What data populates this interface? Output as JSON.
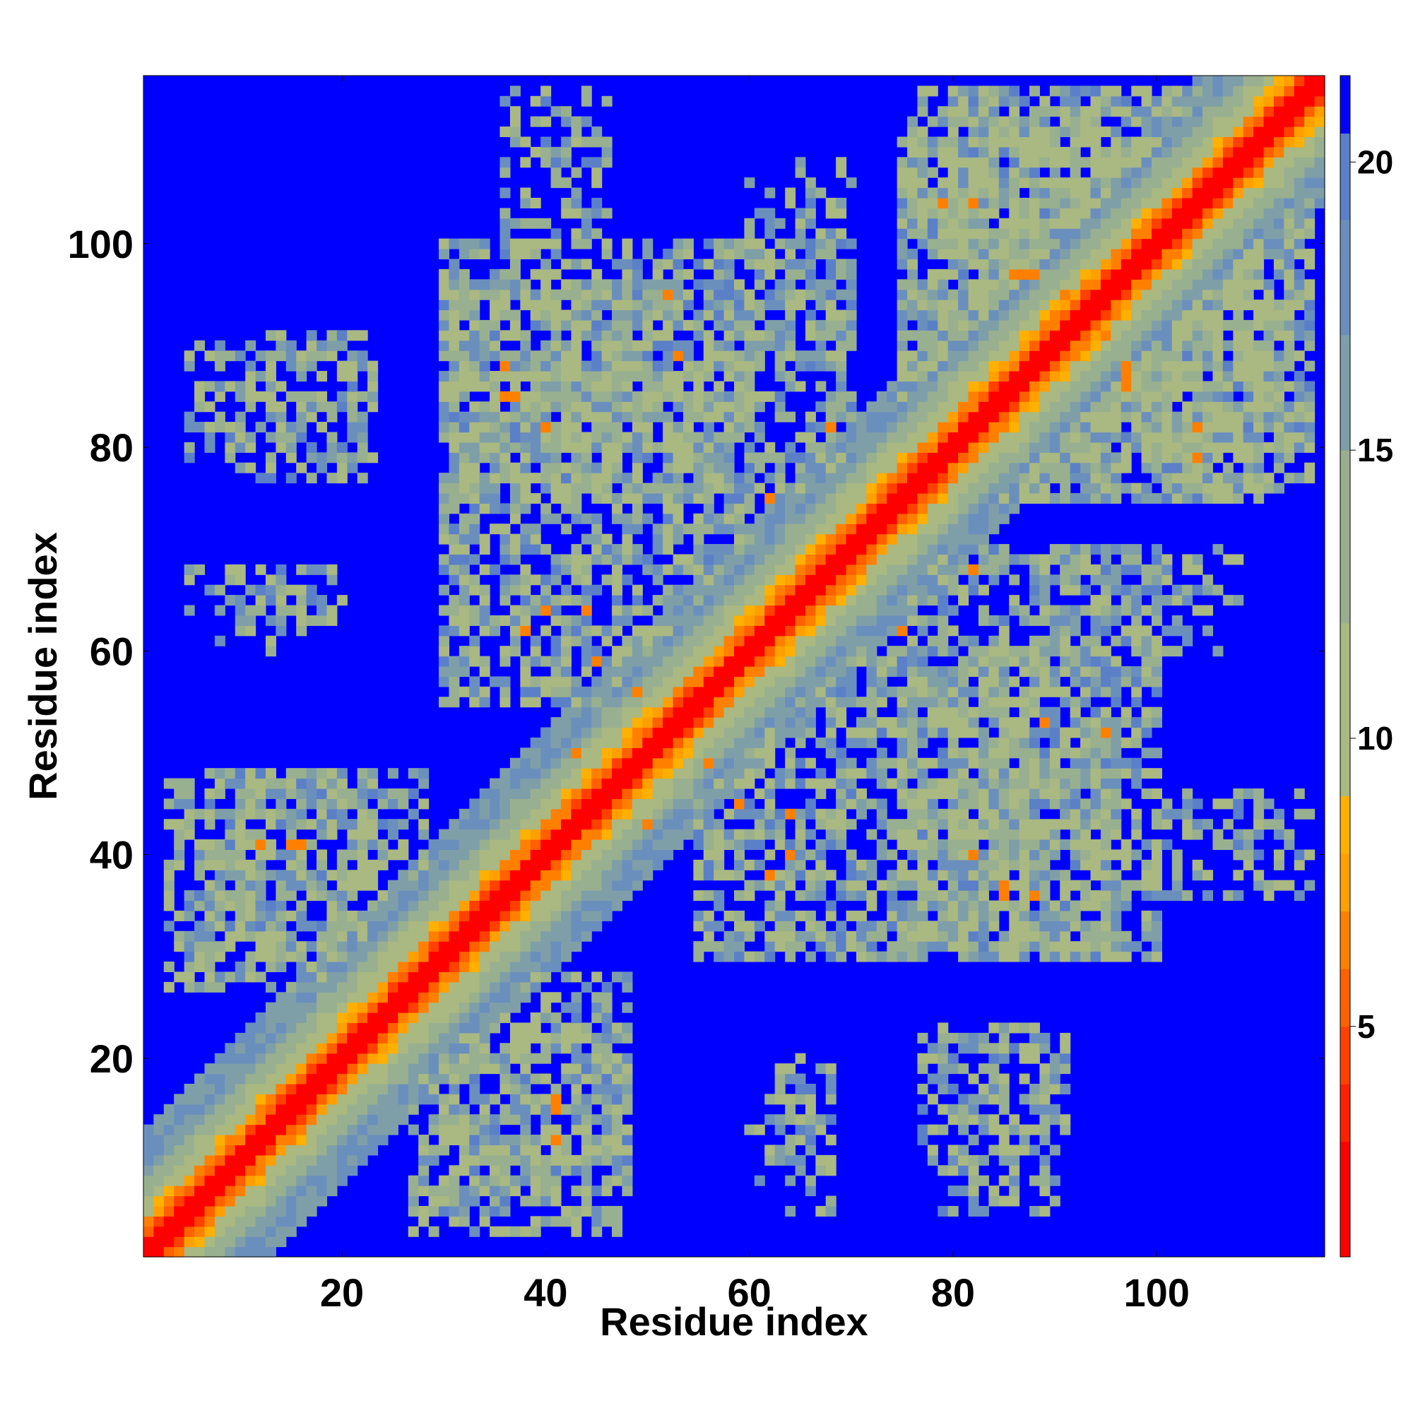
{
  "chart_data": {
    "type": "heatmap",
    "title": "",
    "xlabel": "Residue index",
    "ylabel": "Residue index",
    "n_residues": 116,
    "xlim": [
      1,
      116
    ],
    "ylim": [
      1,
      116
    ],
    "x_ticks": [
      20,
      40,
      60,
      80,
      100
    ],
    "y_ticks": [
      20,
      40,
      60,
      80,
      100
    ],
    "x_tick_labels": [
      "20",
      "40",
      "60",
      "80",
      "100"
    ],
    "y_tick_labels": [
      "20",
      "40",
      "60",
      "80",
      "100"
    ],
    "colorbar": {
      "ticks": [
        5,
        10,
        15,
        20
      ],
      "tick_labels": [
        "5",
        "10",
        "15",
        "20"
      ],
      "range": [
        1,
        21.5
      ],
      "cap": 21.5,
      "stops": [
        {
          "value": 1,
          "color": "#ff0000"
        },
        {
          "value": 3,
          "color": "#ff2000"
        },
        {
          "value": 4,
          "color": "#ff4000"
        },
        {
          "value": 5,
          "color": "#ff6000"
        },
        {
          "value": 6,
          "color": "#ff8000"
        },
        {
          "value": 7,
          "color": "#ffa000"
        },
        {
          "value": 8,
          "color": "#ffb000"
        },
        {
          "value": 9,
          "color": "#aab882"
        },
        {
          "value": 12,
          "color": "#98b08f"
        },
        {
          "value": 15,
          "color": "#7f9fa8"
        },
        {
          "value": 17,
          "color": "#6b8fbd"
        },
        {
          "value": 19,
          "color": "#5b80c8"
        },
        {
          "value": 20.5,
          "color": "#0000ff"
        }
      ]
    },
    "contact_clusters": [
      {
        "x_range": [
          30,
          70
        ],
        "y_range": [
          75,
          100
        ],
        "density": 0.65
      },
      {
        "x_range": [
          55,
          95
        ],
        "y_range": [
          30,
          60
        ],
        "density": 0.65
      },
      {
        "x_range": [
          75,
          115
        ],
        "y_range": [
          80,
          115
        ],
        "density": 0.6
      },
      {
        "x_range": [
          80,
          110
        ],
        "y_range": [
          75,
          100
        ],
        "density": 0.55
      },
      {
        "x_range": [
          3,
          22
        ],
        "y_range": [
          27,
          48
        ],
        "density": 0.55
      },
      {
        "x_range": [
          30,
          48
        ],
        "y_range": [
          5,
          28
        ],
        "density": 0.55
      },
      {
        "x_range": [
          6,
          22
        ],
        "y_range": [
          77,
          91
        ],
        "density": 0.35
      },
      {
        "x_range": [
          36,
          46
        ],
        "y_range": [
          100,
          114
        ],
        "density": 0.3
      },
      {
        "x_range": [
          63,
          68
        ],
        "y_range": [
          5,
          20
        ],
        "density": 0.35
      },
      {
        "x_range": [
          79,
          89
        ],
        "y_range": [
          5,
          23
        ],
        "density": 0.4
      },
      {
        "x_range": [
          95,
          115
        ],
        "y_range": [
          37,
          45
        ],
        "density": 0.25
      },
      {
        "x_range": [
          8,
          20
        ],
        "y_range": [
          60,
          68
        ],
        "density": 0.25
      },
      {
        "x_range": [
          94,
          106
        ],
        "y_range": [
          60,
          68
        ],
        "density": 0.25
      },
      {
        "x_range": [
          64,
          70
        ],
        "y_range": [
          100,
          108
        ],
        "density": 0.3
      }
    ],
    "orange_contacts": [
      [
        15,
        41
      ],
      [
        41,
        15
      ],
      [
        12,
        41
      ],
      [
        41,
        12
      ],
      [
        37,
        85
      ],
      [
        85,
        37
      ],
      [
        40,
        82
      ],
      [
        82,
        40
      ],
      [
        44,
        64
      ],
      [
        64,
        44
      ],
      [
        52,
        95
      ],
      [
        95,
        52
      ],
      [
        53,
        89
      ],
      [
        89,
        53
      ],
      [
        50,
        43
      ],
      [
        43,
        50
      ],
      [
        62,
        38
      ],
      [
        38,
        62
      ],
      [
        85,
        36
      ],
      [
        36,
        85
      ],
      [
        88,
        36
      ],
      [
        36,
        88
      ],
      [
        86,
        97
      ],
      [
        97,
        86
      ],
      [
        97,
        88
      ],
      [
        88,
        97
      ],
      [
        82,
        104
      ],
      [
        104,
        82
      ],
      [
        95,
        91
      ],
      [
        91,
        95
      ],
      [
        97,
        87
      ],
      [
        87,
        97
      ],
      [
        104,
        79
      ],
      [
        79,
        104
      ],
      [
        45,
        59
      ],
      [
        59,
        45
      ],
      [
        49,
        56
      ],
      [
        56,
        49
      ],
      [
        41,
        16
      ],
      [
        16,
        41
      ],
      [
        68,
        82
      ],
      [
        82,
        68
      ],
      [
        64,
        40
      ],
      [
        40,
        64
      ],
      [
        75,
        62
      ],
      [
        62,
        75
      ]
    ]
  }
}
